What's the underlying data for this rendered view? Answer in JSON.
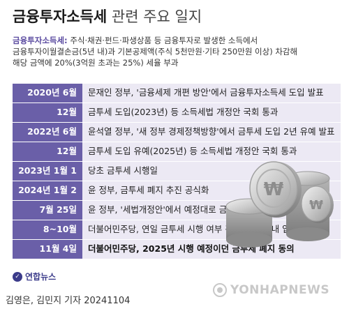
{
  "title": {
    "bold": "금융투자소득세",
    "light": " 관련 주요 일지"
  },
  "description": {
    "term": "금융투자소득세:",
    "line1_rest": " 주식·채권·펀드·파생상품 등 금융투자로 발생한 소득에서",
    "line2": "금융투자이월결손금(5년 내)과 기본공제액(주식 5천만원·기타 250만원 이상) 차감해",
    "line3": "해당 금액에 20%(3억원 초과는 25%) 세율 부과"
  },
  "timeline": [
    {
      "date": "2020년 6월",
      "event": "문재인 정부, '금융세제 개편 방안'에서 금융투자소득세 도입 발표"
    },
    {
      "date": "12월",
      "event": "금투세 도입(2023년) 등 소득세법 개정안 국회 통과"
    },
    {
      "date": "2022년 6월",
      "event": "윤석열 정부, '새 정부 경제정책방향'에서 금투세 도입 2년 유예 발표"
    },
    {
      "date": "12월",
      "event": "금투세 도입 유예(2025년) 등 소득세법 개정안 국회 통과"
    },
    {
      "date": "2023년 1월 1일",
      "event": "당초 금투세 시행일"
    },
    {
      "date": "2024년 1월 2일",
      "event": "윤 정부, 금투세 폐지 추진 공식화"
    },
    {
      "date": "7월 25일",
      "event": "윤 정부, '세법개정안'에서 예정대로 금투세 폐지 발표"
    },
    {
      "date": "8~10월",
      "event": "더불어민주당, 연일 금투세 시행 여부 관련 논의(당내 입장 대치)"
    },
    {
      "date": "11월 4일",
      "event": "더불어민주당, 2025년 시행 예정이던 금투세 폐지 동의"
    }
  ],
  "coin_symbol": "₩",
  "logo": {
    "text": "연합뉴스"
  },
  "credit": "김영은, 김민지 기자  20241104",
  "watermark": "YONHAPNEWS",
  "colors": {
    "date_bg": "#6a5fa8",
    "row_bg": "#ece9f4",
    "term": "#5a4aa0"
  }
}
